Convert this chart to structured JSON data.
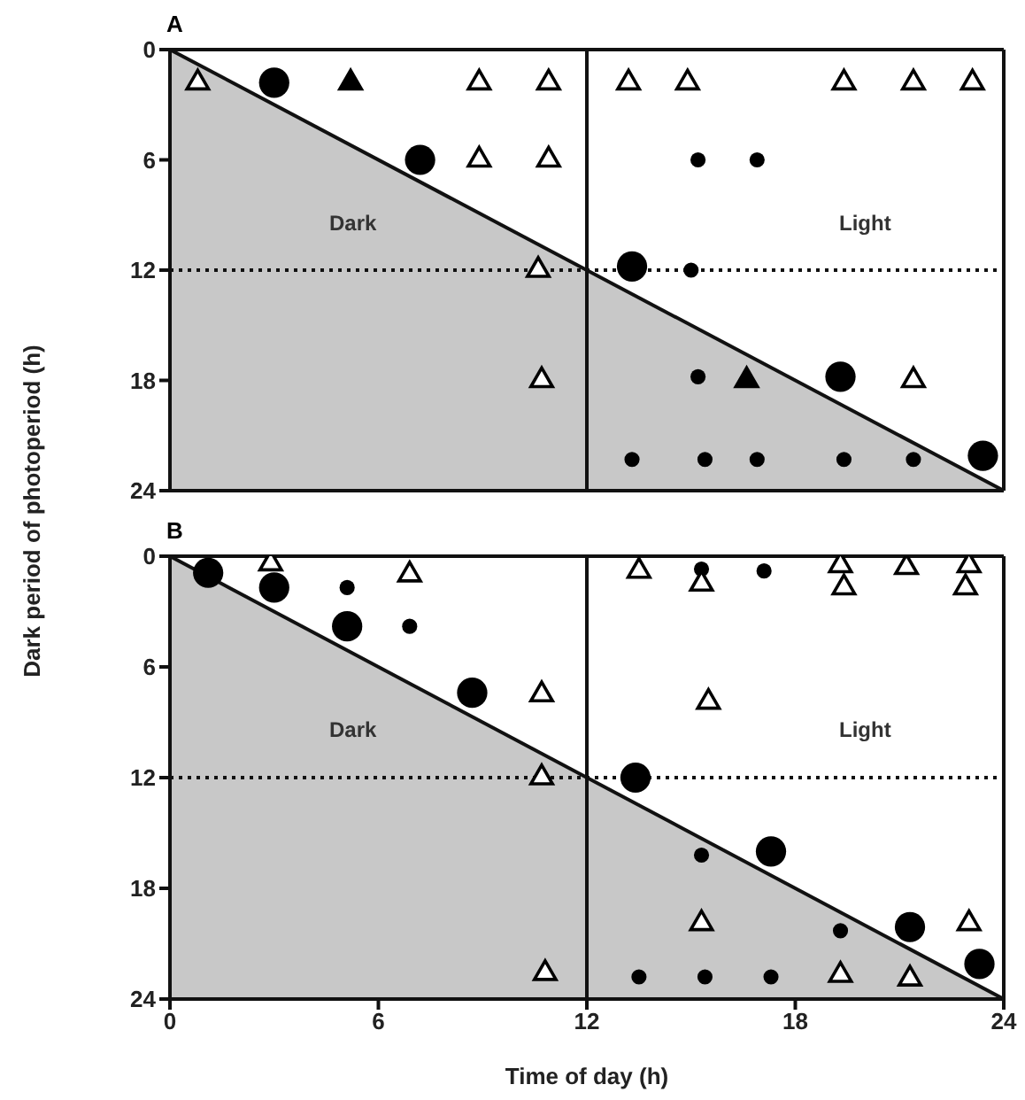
{
  "chart_data": [
    {
      "type": "scatter",
      "title": "A",
      "ylabel": "Dark period of photoperiod (h)",
      "xlim": [
        0,
        24
      ],
      "xticks": [
        0,
        6,
        12,
        18,
        24
      ],
      "ylim": [
        24,
        0
      ],
      "yticks": [
        0,
        6,
        12,
        18,
        24
      ],
      "tick_labels": "y",
      "series": [
        {
          "type": "area",
          "color": "#c8c8c8",
          "x": [
            0,
            24
          ],
          "values": [
            0,
            24
          ]
        },
        {
          "type": "bubble",
          "marker": "circle",
          "color": "#000000",
          "x": [
            3,
            7.2,
            13.3,
            19.3,
            23.4,
            15.2,
            16.9,
            15,
            15.2,
            13.3,
            15.4,
            16.9,
            19.4,
            21.4
          ],
          "values": [
            1.8,
            6,
            11.8,
            17.8,
            22.1,
            6,
            6,
            12,
            17.8,
            22.3,
            22.3,
            22.3,
            22.3,
            22.3
          ],
          "sizes": [
            1,
            1,
            1,
            1,
            1,
            0.25,
            0.25,
            0.25,
            0.25,
            0.25,
            0.25,
            0.25,
            0.25,
            0.25
          ]
        },
        {
          "marker": "triangle",
          "color": "#000000",
          "x": [
            5.2,
            16.6
          ],
          "values": [
            1.8,
            18
          ]
        },
        {
          "marker": "triangle",
          "color": "#ffffff",
          "x": [
            0.8,
            8.9,
            10.9,
            13.2,
            14.9,
            19.4,
            21.4,
            23.1,
            8.9,
            10.9,
            10.6,
            10.7,
            21.4
          ],
          "values": [
            1.8,
            1.8,
            1.8,
            1.8,
            1.8,
            1.8,
            1.8,
            1.8,
            6,
            6,
            12,
            18,
            18
          ]
        }
      ],
      "ref_lines": [
        {
          "axis": "x",
          "value": 12,
          "line_style": "solid"
        },
        {
          "axis": "y",
          "value": 12,
          "line_style": "dotted"
        }
      ],
      "annotations": [
        "Dark",
        "Light"
      ]
    },
    {
      "type": "scatter",
      "title": "B",
      "xlabel": "Time of day (h)",
      "xlim": [
        0,
        24
      ],
      "xticks": [
        0,
        6,
        12,
        18,
        24
      ],
      "ylim": [
        24,
        0
      ],
      "yticks": [
        0,
        6,
        12,
        18,
        24
      ],
      "series": [
        {
          "type": "area",
          "color": "#c8c8c8",
          "x": [
            0,
            24
          ],
          "values": [
            0,
            24
          ]
        },
        {
          "type": "bubble",
          "marker": "circle",
          "color": "#000000",
          "x": [
            1.1,
            3,
            5.1,
            8.7,
            13.4,
            17.3,
            21.3,
            23.3,
            5.1,
            6.9,
            15.3,
            17.1,
            15.3,
            19.3,
            13.5,
            15.4,
            17.3
          ],
          "values": [
            0.9,
            1.7,
            3.8,
            7.4,
            12,
            16,
            20.1,
            22.1,
            1.7,
            3.8,
            0.7,
            0.8,
            16.2,
            20.3,
            22.8,
            22.8,
            22.8
          ],
          "sizes": [
            1,
            1,
            1,
            1,
            1,
            1,
            1,
            1,
            0.25,
            0.25,
            0.25,
            0.25,
            0.25,
            0.25,
            0.25,
            0.25,
            0.25
          ]
        },
        {
          "marker": "triangle",
          "color": "#ffffff",
          "x": [
            2.9,
            6.9,
            10.7,
            10.7,
            10.8,
            13.5,
            15.3,
            19.3,
            19.4,
            21.2,
            23,
            22.9,
            15.5,
            15.3,
            23,
            19.3,
            21.3
          ],
          "values": [
            0.4,
            1,
            7.5,
            12,
            22.6,
            0.8,
            1.5,
            0.5,
            1.7,
            0.6,
            0.5,
            1.7,
            7.9,
            19.9,
            19.9,
            22.7,
            22.9
          ]
        }
      ],
      "ref_lines": [
        {
          "axis": "x",
          "value": 12,
          "line_style": "solid"
        },
        {
          "axis": "y",
          "value": 12,
          "line_style": "dotted"
        }
      ],
      "annotations": [
        "Dark",
        "Light"
      ]
    }
  ]
}
